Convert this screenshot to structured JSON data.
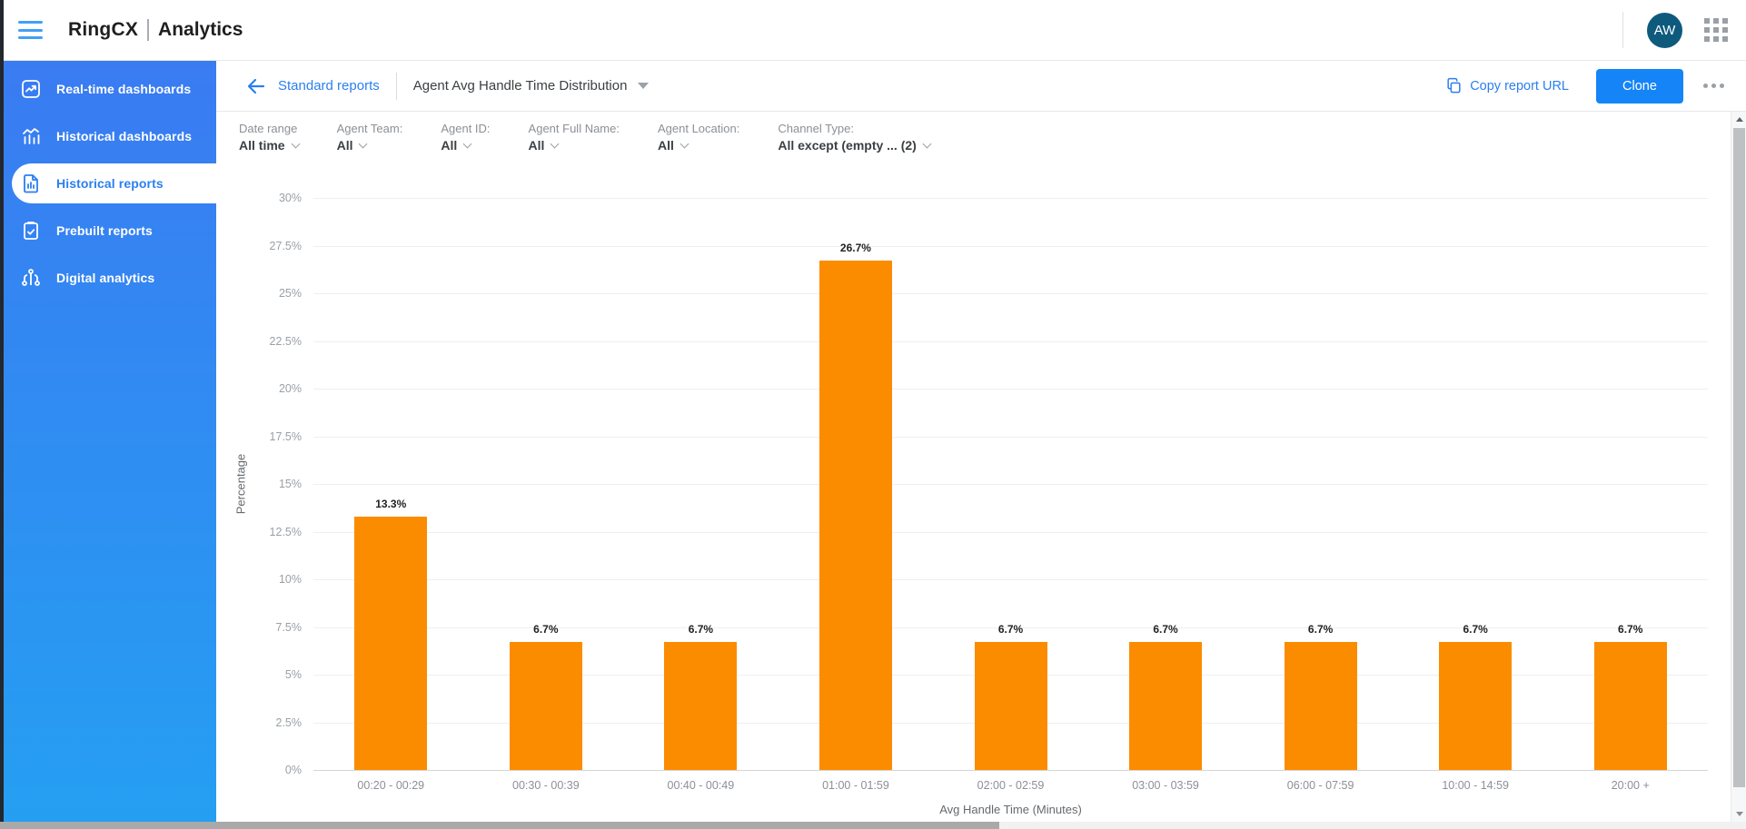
{
  "top_bar": {
    "brand": "RingCX",
    "product": "Analytics",
    "avatar_initials": "AW"
  },
  "sidebar": {
    "items": [
      {
        "label": "Real-time dashboards",
        "icon": "line-chart-icon",
        "selected": false
      },
      {
        "label": "Historical dashboards",
        "icon": "bars-trend-icon",
        "selected": false
      },
      {
        "label": "Historical reports",
        "icon": "report-document-icon",
        "selected": true
      },
      {
        "label": "Prebuilt reports",
        "icon": "clipboard-check-icon",
        "selected": false
      },
      {
        "label": "Digital analytics",
        "icon": "circuit-icon",
        "selected": false
      }
    ]
  },
  "report_header": {
    "back_label": "Standard reports",
    "report_title": "Agent Avg Handle Time Distribution",
    "copy_url_label": "Copy report URL",
    "clone_label": "Clone"
  },
  "filters": [
    {
      "label": "Date range",
      "value": "All time"
    },
    {
      "label": "Agent Team:",
      "value": "All"
    },
    {
      "label": "Agent ID:",
      "value": "All"
    },
    {
      "label": "Agent Full Name:",
      "value": "All"
    },
    {
      "label": "Agent Location:",
      "value": "All"
    },
    {
      "label": "Channel Type:",
      "value": "All except (empty ... (2)"
    }
  ],
  "chart_data": {
    "type": "bar",
    "title": "",
    "xlabel": "Avg Handle Time (Minutes)",
    "ylabel": "Percentage",
    "ylim": [
      0,
      30
    ],
    "grid": true,
    "legend": false,
    "yticks": [
      0,
      2.5,
      5,
      7.5,
      10,
      12.5,
      15,
      17.5,
      20,
      22.5,
      25,
      27.5,
      30
    ],
    "ytick_labels": [
      "0%",
      "2.5%",
      "5%",
      "7.5%",
      "10%",
      "12.5%",
      "15%",
      "17.5%",
      "20%",
      "22.5%",
      "25%",
      "27.5%",
      "30%"
    ],
    "categories": [
      "00:20 - 00:29",
      "00:30 - 00:39",
      "00:40 - 00:49",
      "01:00 - 01:59",
      "02:00 - 02:59",
      "03:00 - 03:59",
      "06:00 - 07:59",
      "10:00 - 14:59",
      "20:00 +"
    ],
    "values": [
      13.3,
      6.7,
      6.7,
      26.7,
      6.7,
      6.7,
      6.7,
      6.7,
      6.7
    ],
    "value_labels": [
      "13.3%",
      "6.7%",
      "6.7%",
      "26.7%",
      "6.7%",
      "6.7%",
      "6.7%",
      "6.7%",
      "6.7%"
    ],
    "bar_color": "#fb8c00"
  },
  "colors": {
    "bar_orange": "#fb8c00",
    "sidebar_blue_top": "#3a7bf2",
    "sidebar_blue_bottom": "#259ff2",
    "link_blue": "#2b7ff0",
    "clone_button_blue": "#1584f7",
    "avatar_background": "#0e5a7d"
  },
  "icons": {
    "menu": "hamburger-icon",
    "apps": "apps-grid-icon",
    "back": "back-arrow-icon",
    "copy": "copy-icon",
    "more": "ellipsis-icon",
    "dropdown": "caret-down-icon"
  }
}
